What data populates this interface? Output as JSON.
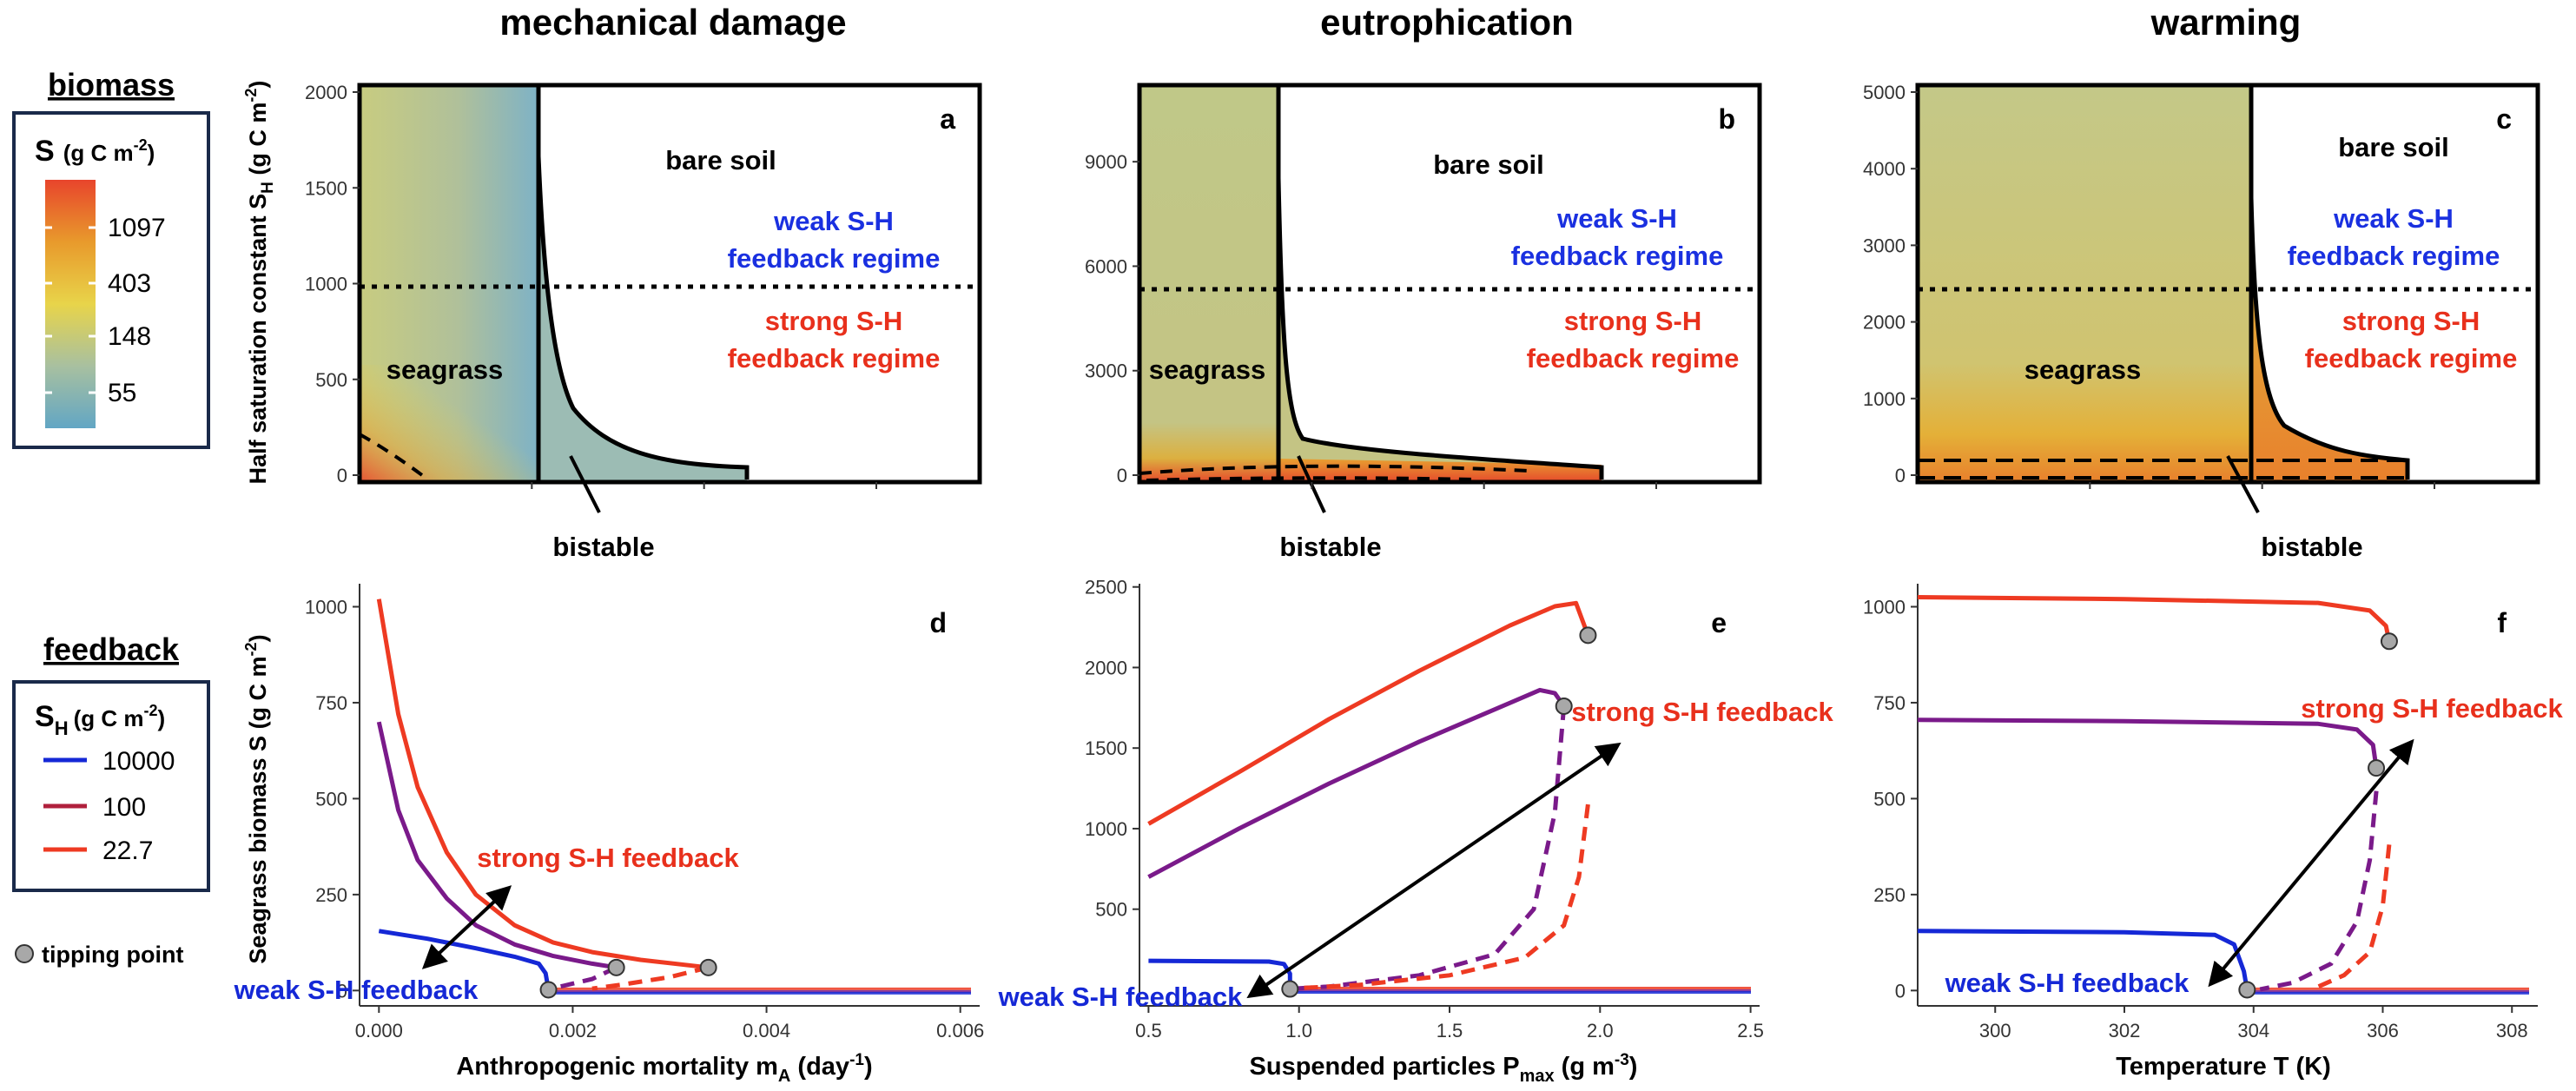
{
  "titles": {
    "col1": "mechanical damage",
    "col2": "eutrophication",
    "col3": "warming"
  },
  "legend_biomass": {
    "title": "biomass",
    "label_main": "S",
    "label_unit": "(g C m",
    "label_exp": "-2",
    "label_close": ")",
    "ticks": [
      "1097",
      "403",
      "148",
      "55"
    ],
    "colors": [
      "#e8452c",
      "#e89a2c",
      "#e8d44a",
      "#a8c0a0",
      "#62a6c4"
    ]
  },
  "legend_feedback": {
    "title": "feedback",
    "label_main": "S",
    "label_sub": "H",
    "label_unit": "(g C m",
    "label_exp": "-2",
    "label_close": ")",
    "items": [
      {
        "label": "10000",
        "color": "#1528d6"
      },
      {
        "label": "100",
        "color": "#b0203c"
      },
      {
        "label": "22.7",
        "color": "#ee3a22"
      }
    ],
    "tipping_label": "tipping point"
  },
  "top_ylabel": {
    "main": "Half saturation constant S",
    "sub": "H",
    "unit": " (g C m",
    "exp": "-2",
    "close": ")"
  },
  "bottom_ylabel": {
    "main": "Seagrass biomass S (g C m",
    "exp": "-2",
    "close": ")"
  },
  "region_labels": {
    "bare_soil": "bare soil",
    "weak_line1": "weak S-H",
    "weak_line2": "feedback regime",
    "strong_line1": "strong S-H",
    "strong_line2": "feedback regime",
    "seagrass": "seagrass",
    "bistable": "bistable"
  },
  "feedback_labels": {
    "strong": "strong S-H feedback",
    "weak": "weak S-H feedback"
  },
  "xlabels": {
    "d": {
      "main": "Anthropogenic mortality m",
      "sub": "A",
      "unit": " (day",
      "exp": "-1",
      "close": ")"
    },
    "e": {
      "main": "Suspended particles P",
      "sub": "max",
      "unit": " (g m",
      "exp": "-3",
      "close": ")"
    },
    "f": {
      "main": "Temperature T (K)"
    }
  },
  "chart_data": [
    {
      "panel": "a",
      "type": "heatmap",
      "title": "mechanical damage",
      "ylim": [
        0,
        2000
      ],
      "yticks": [
        "0",
        "500",
        "1000",
        "1500",
        "2000"
      ],
      "threshold_sh": 975,
      "vertical_boundary_x": 0.00175,
      "regions": [
        "seagrass",
        "bistable",
        "bare soil"
      ]
    },
    {
      "panel": "b",
      "type": "heatmap",
      "title": "eutrophication",
      "ylim": [
        0,
        11000
      ],
      "yticks": [
        "0",
        "3000",
        "6000",
        "9000"
      ],
      "threshold_sh": 5300,
      "vertical_boundary_x": 0.97,
      "regions": [
        "seagrass",
        "bistable",
        "bare soil"
      ]
    },
    {
      "panel": "c",
      "type": "heatmap",
      "title": "warming",
      "ylim": [
        0,
        5000
      ],
      "yticks": [
        "0",
        "1000",
        "2000",
        "3000",
        "4000",
        "5000"
      ],
      "threshold_sh": 2420,
      "vertical_boundary_x": 303.9,
      "regions": [
        "seagrass",
        "bistable",
        "bare soil"
      ]
    },
    {
      "panel": "d",
      "type": "line",
      "xlim": [
        -0.0002,
        0.0062
      ],
      "ylim": [
        -40,
        1060
      ],
      "xticks": [
        "0.000",
        "0.002",
        "0.004",
        "0.006"
      ],
      "yticks": [
        "0",
        "250",
        "500",
        "750",
        "1000"
      ],
      "series": [
        {
          "name": "10000",
          "color": "#1528d6",
          "stable": [
            [
              0.0,
              155
            ],
            [
              0.0005,
              135
            ],
            [
              0.001,
              110
            ],
            [
              0.0014,
              88
            ],
            [
              0.00165,
              70
            ],
            [
              0.00172,
              45
            ],
            [
              0.00175,
              2
            ]
          ],
          "tip": [
            0.00175,
            2
          ]
        },
        {
          "name": "100",
          "color": "#7a1a8a",
          "stable": [
            [
              0.0,
              700
            ],
            [
              0.0002,
              470
            ],
            [
              0.0004,
              340
            ],
            [
              0.0007,
              240
            ],
            [
              0.001,
              170
            ],
            [
              0.0014,
              120
            ],
            [
              0.0018,
              90
            ],
            [
              0.0022,
              70
            ],
            [
              0.00245,
              60
            ]
          ],
          "unstable": [
            [
              0.00245,
              60
            ],
            [
              0.0022,
              30
            ],
            [
              0.0019,
              12
            ],
            [
              0.00175,
              4
            ]
          ],
          "tip": [
            0.00245,
            60
          ]
        },
        {
          "name": "22.7",
          "color": "#ee3a22",
          "stable": [
            [
              0.0,
              1020
            ],
            [
              0.0002,
              720
            ],
            [
              0.0004,
              530
            ],
            [
              0.0007,
              360
            ],
            [
              0.001,
              250
            ],
            [
              0.0014,
              170
            ],
            [
              0.0018,
              125
            ],
            [
              0.0022,
              100
            ],
            [
              0.0027,
              80
            ],
            [
              0.0034,
              60
            ]
          ],
          "unstable": [
            [
              0.0034,
              60
            ],
            [
              0.003,
              35
            ],
            [
              0.0025,
              15
            ],
            [
              0.0022,
              5
            ]
          ],
          "tip": [
            0.0034,
            60
          ]
        }
      ]
    },
    {
      "panel": "e",
      "type": "line",
      "xlim": [
        0.47,
        2.53
      ],
      "ylim": [
        -100,
        2520
      ],
      "xticks": [
        "0.5",
        "1.0",
        "1.5",
        "2.0",
        "2.5"
      ],
      "yticks": [
        "500",
        "1000",
        "1500",
        "2000",
        "2500"
      ],
      "series": [
        {
          "name": "10000",
          "color": "#1528d6",
          "stable": [
            [
              0.5,
              180
            ],
            [
              0.9,
              175
            ],
            [
              0.95,
              160
            ],
            [
              0.97,
              100
            ],
            [
              0.97,
              5
            ]
          ],
          "tip": [
            0.97,
            5
          ]
        },
        {
          "name": "100",
          "color": "#7a1a8a",
          "stable": [
            [
              0.5,
              700
            ],
            [
              0.8,
              1000
            ],
            [
              1.1,
              1280
            ],
            [
              1.4,
              1540
            ],
            [
              1.7,
              1780
            ],
            [
              1.8,
              1860
            ],
            [
              1.85,
              1840
            ],
            [
              1.88,
              1760
            ]
          ],
          "unstable": [
            [
              1.88,
              1760
            ],
            [
              1.85,
              1100
            ],
            [
              1.78,
              500
            ],
            [
              1.65,
              220
            ],
            [
              1.4,
              90
            ],
            [
              1.1,
              20
            ],
            [
              0.97,
              5
            ]
          ],
          "tip": [
            1.88,
            1760
          ]
        },
        {
          "name": "22.7",
          "color": "#ee3a22",
          "stable": [
            [
              0.5,
              1030
            ],
            [
              0.8,
              1350
            ],
            [
              1.1,
              1680
            ],
            [
              1.4,
              1980
            ],
            [
              1.7,
              2260
            ],
            [
              1.85,
              2380
            ],
            [
              1.92,
              2400
            ],
            [
              1.96,
              2200
            ]
          ],
          "unstable": [
            [
              1.96,
              1150
            ],
            [
              1.93,
              700
            ],
            [
              1.88,
              400
            ],
            [
              1.75,
              200
            ],
            [
              1.5,
              90
            ],
            [
              1.2,
              30
            ],
            [
              1.0,
              10
            ]
          ],
          "tip": [
            1.96,
            2200
          ]
        }
      ]
    },
    {
      "panel": "f",
      "type": "line",
      "xlim": [
        298.8,
        308.4
      ],
      "ylim": [
        -40,
        1060
      ],
      "xticks": [
        "300",
        "302",
        "304",
        "306",
        "308"
      ],
      "yticks": [
        "0",
        "250",
        "500",
        "750",
        "1000"
      ],
      "series": [
        {
          "name": "10000",
          "color": "#1528d6",
          "stable": [
            [
              298.8,
              155
            ],
            [
              302,
              152
            ],
            [
              303.4,
              145
            ],
            [
              303.7,
              120
            ],
            [
              303.85,
              50
            ],
            [
              303.9,
              2
            ]
          ],
          "tip": [
            303.9,
            2
          ]
        },
        {
          "name": "100",
          "color": "#7a1a8a",
          "stable": [
            [
              298.8,
              705
            ],
            [
              302,
              702
            ],
            [
              305,
              695
            ],
            [
              305.6,
              680
            ],
            [
              305.85,
              640
            ],
            [
              305.9,
              580
            ]
          ],
          "unstable": [
            [
              305.9,
              520
            ],
            [
              305.8,
              340
            ],
            [
              305.6,
              180
            ],
            [
              305.2,
              70
            ],
            [
              304.6,
              20
            ],
            [
              304.1,
              3
            ]
          ],
          "tip": [
            305.9,
            580
          ]
        },
        {
          "name": "22.7",
          "color": "#ee3a22",
          "stable": [
            [
              298.8,
              1025
            ],
            [
              302,
              1020
            ],
            [
              305,
              1010
            ],
            [
              305.8,
              990
            ],
            [
              306.05,
              950
            ],
            [
              306.1,
              910
            ]
          ],
          "unstable": [
            [
              306.1,
              380
            ],
            [
              306.0,
              220
            ],
            [
              305.8,
              100
            ],
            [
              305.4,
              40
            ],
            [
              305,
              10
            ]
          ],
          "tip": [
            306.1,
            910
          ]
        }
      ]
    }
  ]
}
